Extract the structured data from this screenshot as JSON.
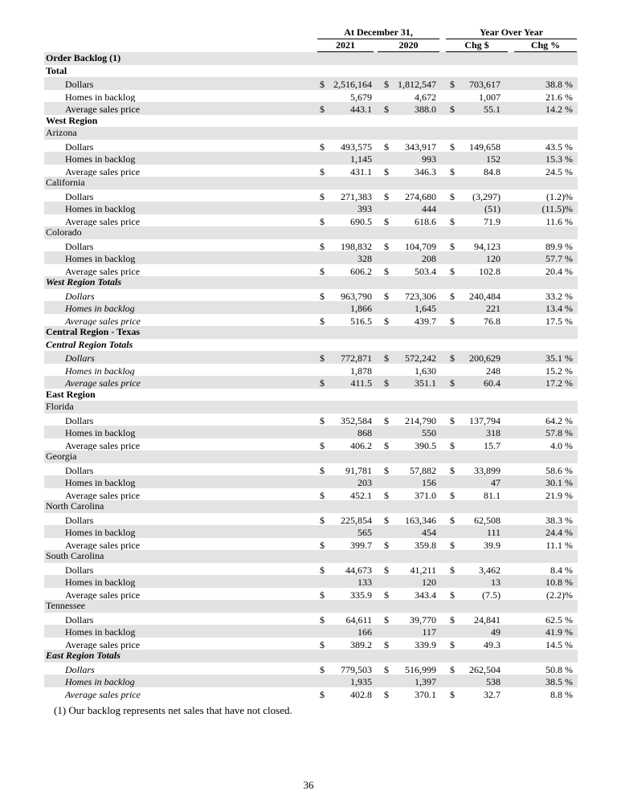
{
  "header": {
    "group1": "At December 31,",
    "group2": "Year Over Year",
    "columns": [
      "2021",
      "2020",
      "Chg $",
      "Chg %"
    ]
  },
  "currency_symbol": "$",
  "rows": [
    {
      "label": "Order Backlog (1)",
      "style": "bold"
    },
    {
      "label": "Total",
      "style": "bold"
    },
    {
      "label": "Dollars",
      "style": "indent",
      "cur": true,
      "v": [
        "2,516,164",
        "1,812,547",
        "703,617",
        "38.8 %"
      ]
    },
    {
      "label": "Homes in backlog",
      "style": "indent",
      "v": [
        "5,679",
        "4,672",
        "1,007",
        "21.6 %"
      ]
    },
    {
      "label": "Average sales price",
      "style": "indent",
      "cur": true,
      "v": [
        "443.1",
        "388.0",
        "55.1",
        "14.2 %"
      ]
    },
    {
      "label": "West Region",
      "style": "bold"
    },
    {
      "label": "Arizona",
      "style": "plain"
    },
    {
      "label": "Dollars",
      "style": "indent",
      "cur": true,
      "v": [
        "493,575",
        "343,917",
        "149,658",
        "43.5 %"
      ]
    },
    {
      "label": "Homes in backlog",
      "style": "indent",
      "v": [
        "1,145",
        "993",
        "152",
        "15.3 %"
      ]
    },
    {
      "label": "Average sales price",
      "style": "indent",
      "cur": true,
      "v": [
        "431.1",
        "346.3",
        "84.8",
        "24.5 %"
      ]
    },
    {
      "label": "California",
      "style": "plain"
    },
    {
      "label": "Dollars",
      "style": "indent",
      "cur": true,
      "v": [
        "271,383",
        "274,680",
        "(3,297)",
        "(1.2)%"
      ]
    },
    {
      "label": "Homes in backlog",
      "style": "indent",
      "v": [
        "393",
        "444",
        "(51)",
        "(11.5)%"
      ]
    },
    {
      "label": "Average sales price",
      "style": "indent",
      "cur": true,
      "v": [
        "690.5",
        "618.6",
        "71.9",
        "11.6 %"
      ]
    },
    {
      "label": "Colorado",
      "style": "plain"
    },
    {
      "label": "Dollars",
      "style": "indent",
      "cur": true,
      "v": [
        "198,832",
        "104,709",
        "94,123",
        "89.9 %"
      ]
    },
    {
      "label": "Homes in backlog",
      "style": "indent",
      "v": [
        "328",
        "208",
        "120",
        "57.7 %"
      ]
    },
    {
      "label": "Average sales price",
      "style": "indent",
      "cur": true,
      "v": [
        "606.2",
        "503.4",
        "102.8",
        "20.4 %"
      ]
    },
    {
      "label": "West Region Totals",
      "style": "bolditalic"
    },
    {
      "label": "Dollars",
      "style": "indent-italic",
      "cur": true,
      "v": [
        "963,790",
        "723,306",
        "240,484",
        "33.2 %"
      ]
    },
    {
      "label": "Homes in backlog",
      "style": "indent-italic",
      "v": [
        "1,866",
        "1,645",
        "221",
        "13.4 %"
      ]
    },
    {
      "label": "Average sales price",
      "style": "indent-italic",
      "cur": true,
      "v": [
        "516.5",
        "439.7",
        "76.8",
        "17.5 %"
      ]
    },
    {
      "label": "Central Region - Texas",
      "style": "bold"
    },
    {
      "label": "Central Region Totals",
      "style": "bolditalic"
    },
    {
      "label": "Dollars",
      "style": "indent-italic",
      "cur": true,
      "v": [
        "772,871",
        "572,242",
        "200,629",
        "35.1 %"
      ]
    },
    {
      "label": "Homes in backlog",
      "style": "indent-italic",
      "v": [
        "1,878",
        "1,630",
        "248",
        "15.2 %"
      ]
    },
    {
      "label": "Average sales price",
      "style": "indent-italic",
      "cur": true,
      "v": [
        "411.5",
        "351.1",
        "60.4",
        "17.2 %"
      ]
    },
    {
      "label": "East Region",
      "style": "bold"
    },
    {
      "label": "Florida",
      "style": "plain"
    },
    {
      "label": "Dollars",
      "style": "indent",
      "cur": true,
      "v": [
        "352,584",
        "214,790",
        "137,794",
        "64.2 %"
      ]
    },
    {
      "label": "Homes in backlog",
      "style": "indent",
      "v": [
        "868",
        "550",
        "318",
        "57.8 %"
      ]
    },
    {
      "label": "Average sales price",
      "style": "indent",
      "cur": true,
      "v": [
        "406.2",
        "390.5",
        "15.7",
        "4.0 %"
      ]
    },
    {
      "label": "Georgia",
      "style": "plain"
    },
    {
      "label": "Dollars",
      "style": "indent",
      "cur": true,
      "v": [
        "91,781",
        "57,882",
        "33,899",
        "58.6 %"
      ]
    },
    {
      "label": "Homes in backlog",
      "style": "indent",
      "v": [
        "203",
        "156",
        "47",
        "30.1 %"
      ]
    },
    {
      "label": "Average sales price",
      "style": "indent",
      "cur": true,
      "v": [
        "452.1",
        "371.0",
        "81.1",
        "21.9 %"
      ]
    },
    {
      "label": "North Carolina",
      "style": "plain"
    },
    {
      "label": "Dollars",
      "style": "indent",
      "cur": true,
      "v": [
        "225,854",
        "163,346",
        "62,508",
        "38.3 %"
      ]
    },
    {
      "label": "Homes in backlog",
      "style": "indent",
      "v": [
        "565",
        "454",
        "111",
        "24.4 %"
      ]
    },
    {
      "label": "Average sales price",
      "style": "indent",
      "cur": true,
      "v": [
        "399.7",
        "359.8",
        "39.9",
        "11.1 %"
      ]
    },
    {
      "label": "South Carolina",
      "style": "plain"
    },
    {
      "label": "Dollars",
      "style": "indent",
      "cur": true,
      "v": [
        "44,673",
        "41,211",
        "3,462",
        "8.4 %"
      ]
    },
    {
      "label": "Homes in backlog",
      "style": "indent",
      "v": [
        "133",
        "120",
        "13",
        "10.8 %"
      ]
    },
    {
      "label": "Average sales price",
      "style": "indent",
      "cur": true,
      "v": [
        "335.9",
        "343.4",
        "(7.5)",
        "(2.2)%"
      ]
    },
    {
      "label": "Tennessee",
      "style": "plain"
    },
    {
      "label": "Dollars",
      "style": "indent",
      "cur": true,
      "v": [
        "64,611",
        "39,770",
        "24,841",
        "62.5 %"
      ]
    },
    {
      "label": "Homes in backlog",
      "style": "indent",
      "v": [
        "166",
        "117",
        "49",
        "41.9 %"
      ]
    },
    {
      "label": "Average sales price",
      "style": "indent",
      "cur": true,
      "v": [
        "389.2",
        "339.9",
        "49.3",
        "14.5 %"
      ]
    },
    {
      "label": "East Region Totals",
      "style": "bolditalic"
    },
    {
      "label": "Dollars",
      "style": "indent-italic",
      "cur": true,
      "v": [
        "779,503",
        "516,999",
        "262,504",
        "50.8 %"
      ]
    },
    {
      "label": "Homes in backlog",
      "style": "indent-italic",
      "v": [
        "1,935",
        "1,397",
        "538",
        "38.5 %"
      ]
    },
    {
      "label": "Average sales price",
      "style": "indent-italic",
      "cur": true,
      "v": [
        "402.8",
        "370.1",
        "32.7",
        "8.8 %"
      ]
    }
  ],
  "footnote": "(1)  Our backlog represents net sales that have not closed.",
  "page_number": "36"
}
